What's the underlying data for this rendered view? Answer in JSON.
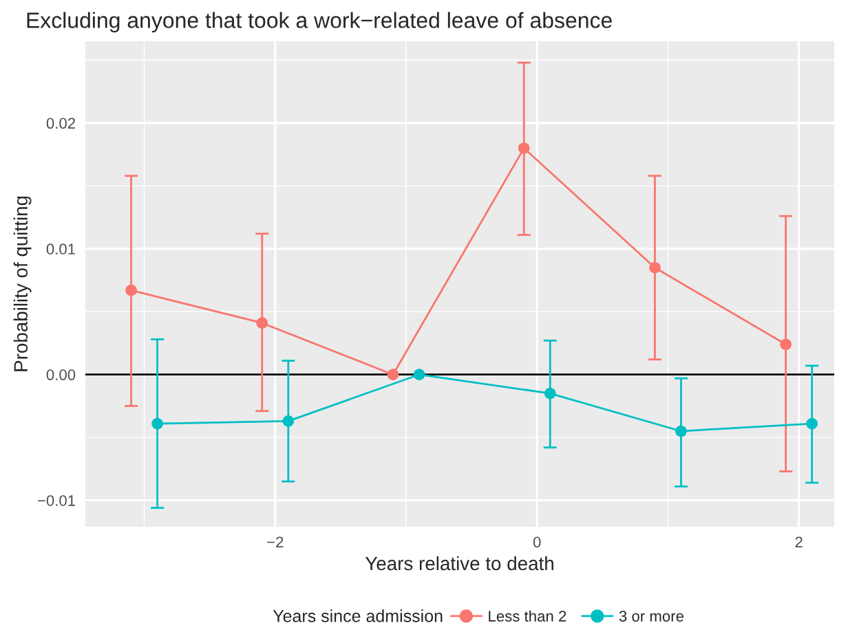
{
  "chart_data": {
    "type": "line",
    "title": "Excluding anyone that took a work−related leave of absence",
    "xlabel": "Years relative to death",
    "ylabel": "Probability of quitting",
    "legend_title": "Years since admission",
    "series": [
      {
        "name": "Less than 2",
        "color": "#f8766d",
        "x": [
          -3.1,
          -2.1,
          -1.1,
          -0.1,
          0.9,
          1.9
        ],
        "values": [
          0.0067,
          0.0041,
          0.0,
          0.018,
          0.0085,
          0.0024
        ],
        "errors": [
          [
            -0.0025,
            0.0158
          ],
          [
            -0.0029,
            0.0112
          ],
          null,
          [
            0.0111,
            0.0248
          ],
          [
            0.0012,
            0.0158
          ],
          [
            -0.0077,
            0.0126
          ]
        ]
      },
      {
        "name": "3 or more",
        "color": "#00bfc4",
        "x": [
          -2.9,
          -1.9,
          -0.9,
          0.1,
          1.1,
          2.1
        ],
        "values": [
          -0.0039,
          -0.0037,
          0.0,
          -0.0015,
          -0.0045,
          -0.0039
        ],
        "errors": [
          [
            -0.0106,
            0.0028
          ],
          [
            -0.0085,
            0.0011
          ],
          null,
          [
            -0.0058,
            0.0027
          ],
          [
            -0.0089,
            -0.0003
          ],
          [
            -0.0086,
            0.0007
          ]
        ]
      }
    ],
    "xlim": [
      -3.45,
      2.27
    ],
    "ylim": [
      -0.0121,
      0.0265
    ],
    "xticks": [
      {
        "value": -2,
        "label": "−2"
      },
      0,
      2
    ],
    "yticks": [
      {
        "value": -0.01,
        "label": "−0.01"
      },
      {
        "value": 0,
        "label": "0.00"
      },
      0.01,
      0.02
    ],
    "ref_lines": [
      {
        "axis": "y",
        "value": 0,
        "color": "#000000"
      }
    ],
    "grid": true,
    "legend": "bottom",
    "marker": "circle",
    "line_style": "solid"
  }
}
